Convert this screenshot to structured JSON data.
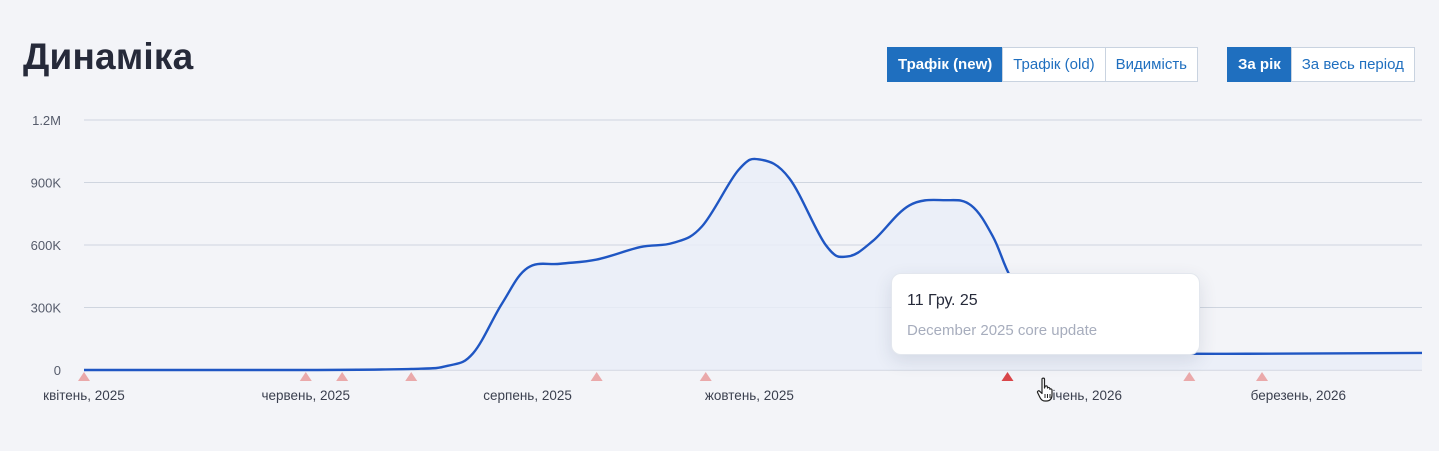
{
  "header": {
    "title": "Динаміка"
  },
  "metric_tabs": [
    {
      "label": "Трафік (new)",
      "active": true
    },
    {
      "label": "Трафік (old)",
      "active": false
    },
    {
      "label": "Видимість",
      "active": false
    }
  ],
  "period_tabs": [
    {
      "label": "За рік",
      "active": true
    },
    {
      "label": "За весь період",
      "active": false
    }
  ],
  "tooltip": {
    "date": "11 Гру. 25",
    "text": "December 2025 core update"
  },
  "colors": {
    "line": "#1f56c3",
    "area": "#e8edf7",
    "grid": "#cfd5df",
    "marker": "#eaa9aa",
    "marker_active": "#d9464a",
    "accent": "#1f6fbf"
  },
  "chart_data": {
    "type": "area",
    "ylim": [
      0,
      1200000
    ],
    "y_ticks": [
      {
        "value": 0,
        "label": "0"
      },
      {
        "value": 300000,
        "label": "300K"
      },
      {
        "value": 600000,
        "label": "600K"
      },
      {
        "value": 900000,
        "label": "900K"
      },
      {
        "value": 1200000,
        "label": "1.2M"
      }
    ],
    "xlim": [
      "2025-04-01",
      "2026-04-04"
    ],
    "x_ticks": [
      {
        "date": "2025-04-01",
        "label": "квітень, 2025"
      },
      {
        "date": "2025-06-01",
        "label": "червень, 2025"
      },
      {
        "date": "2025-08-01",
        "label": "серпень, 2025"
      },
      {
        "date": "2025-10-01",
        "label": "жовтень, 2025"
      },
      {
        "date": "2026-01-01",
        "label": "січень, 2026"
      },
      {
        "date": "2026-03-01",
        "label": "березень, 2026"
      }
    ],
    "series": [
      {
        "points": [
          [
            "2025-04-01",
            0
          ],
          [
            "2025-06-01",
            0
          ],
          [
            "2025-06-30",
            5000
          ],
          [
            "2025-07-10",
            20000
          ],
          [
            "2025-07-17",
            80000
          ],
          [
            "2025-07-25",
            320000
          ],
          [
            "2025-08-01",
            490000
          ],
          [
            "2025-08-10",
            510000
          ],
          [
            "2025-08-20",
            530000
          ],
          [
            "2025-09-01",
            590000
          ],
          [
            "2025-09-10",
            610000
          ],
          [
            "2025-09-18",
            690000
          ],
          [
            "2025-09-28",
            960000
          ],
          [
            "2025-10-04",
            1010000
          ],
          [
            "2025-10-12",
            920000
          ],
          [
            "2025-10-22",
            600000
          ],
          [
            "2025-10-28",
            545000
          ],
          [
            "2025-11-04",
            620000
          ],
          [
            "2025-11-14",
            790000
          ],
          [
            "2025-11-24",
            815000
          ],
          [
            "2025-12-01",
            790000
          ],
          [
            "2025-12-07",
            640000
          ],
          [
            "2025-12-12",
            440000
          ],
          [
            "2025-12-20",
            230000
          ],
          [
            "2025-12-28",
            120000
          ],
          [
            "2026-01-05",
            95000
          ],
          [
            "2026-01-20",
            80000
          ],
          [
            "2026-02-15",
            78000
          ],
          [
            "2026-03-15",
            80000
          ],
          [
            "2026-04-04",
            82000
          ]
        ]
      }
    ],
    "events": [
      {
        "date": "2025-04-01",
        "active": false
      },
      {
        "date": "2025-06-01",
        "active": false
      },
      {
        "date": "2025-06-11",
        "active": false
      },
      {
        "date": "2025-06-30",
        "active": false
      },
      {
        "date": "2025-08-20",
        "active": false
      },
      {
        "date": "2025-09-19",
        "active": false
      },
      {
        "date": "2025-12-11",
        "active": true
      },
      {
        "date": "2026-01-30",
        "active": false
      },
      {
        "date": "2026-02-19",
        "active": false
      }
    ]
  }
}
